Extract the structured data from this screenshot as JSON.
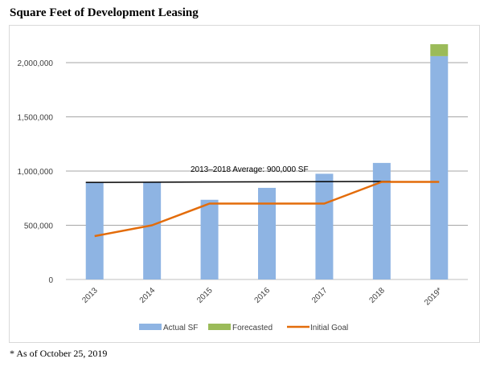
{
  "title": "Square Feet of Development Leasing",
  "footnote": "* As of October 25, 2019",
  "colors": {
    "actual": "#8eb4e3",
    "forecasted": "#9bbb59",
    "goal": "#e36c0a",
    "average": "#000000",
    "grid": "#a6a6a6"
  },
  "chart_data": {
    "type": "bar",
    "categories": [
      "2013",
      "2014",
      "2015",
      "2016",
      "2017",
      "2018",
      "2019*"
    ],
    "series": [
      {
        "name": "Actual SF",
        "type": "bar",
        "stacked": true,
        "values": [
          895000,
          900000,
          735000,
          845000,
          975000,
          1075000,
          2060000
        ]
      },
      {
        "name": "Forecasted",
        "type": "bar",
        "stacked": true,
        "values": [
          0,
          0,
          0,
          0,
          0,
          0,
          110000
        ]
      },
      {
        "name": "Initial Goal",
        "type": "line",
        "values": [
          400000,
          500000,
          700000,
          700000,
          700000,
          900000,
          900000
        ]
      }
    ],
    "average_line": {
      "label": "2013–2018 Average: 900,000 SF",
      "from": "2013",
      "to": "2018",
      "start_value": 895000,
      "end_value": 905000
    },
    "y_ticks": [
      0,
      500000,
      1000000,
      1500000,
      2000000
    ],
    "y_tick_labels": [
      "0",
      "500,000",
      "1,000,000",
      "1,500,000",
      "2,000,000"
    ],
    "ylim": [
      0,
      2200000
    ],
    "grid": true,
    "legend": [
      "Actual SF",
      "Forecasted",
      "Initial Goal"
    ],
    "legend_position": "bottom"
  }
}
